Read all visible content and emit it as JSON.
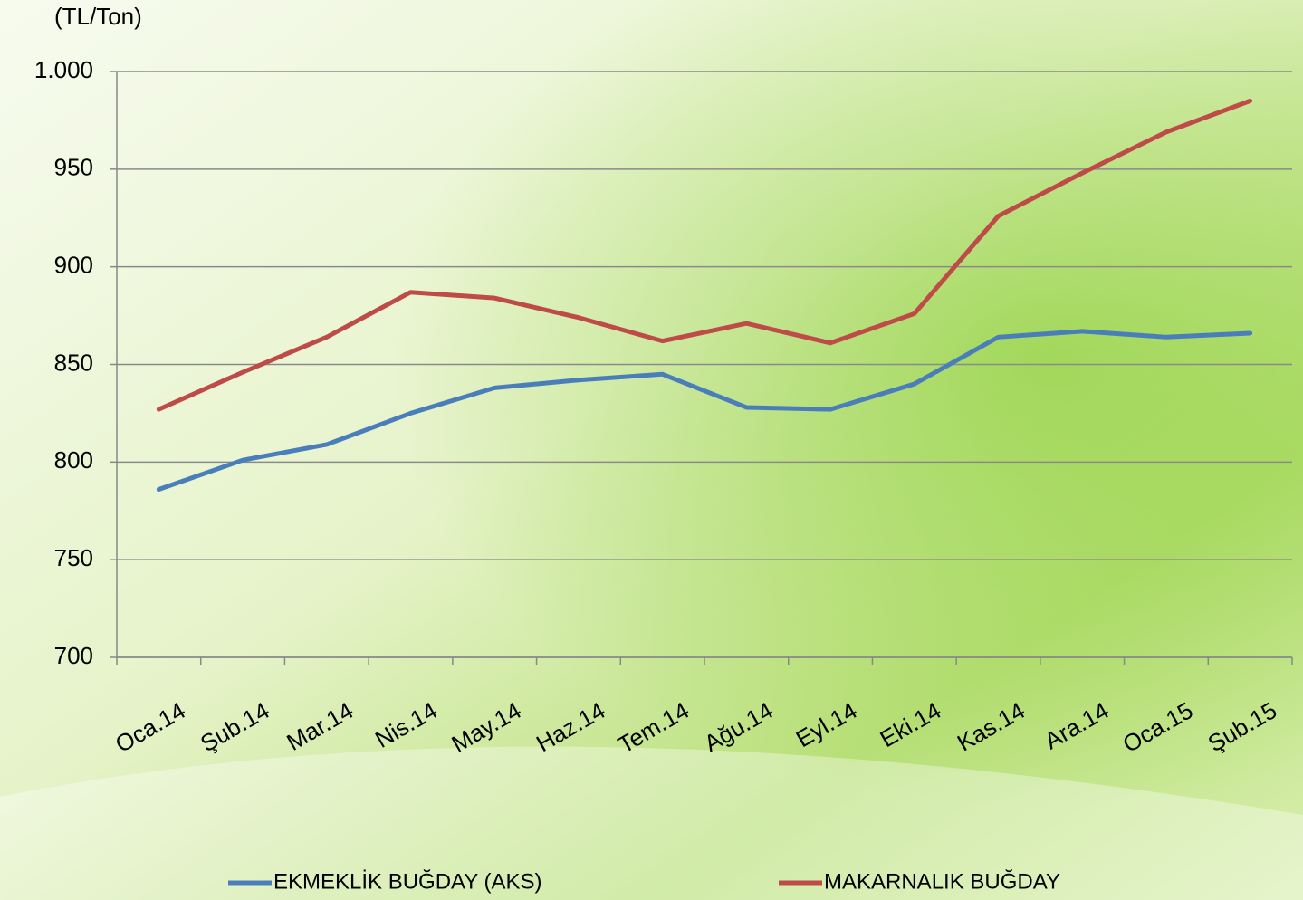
{
  "chart_data": {
    "type": "line",
    "ylabel": "(TL/Ton)",
    "categories": [
      "Oca.14",
      "Şub.14",
      "Mar.14",
      "Nis.14",
      "May.14",
      "Haz.14",
      "Tem.14",
      "Ağu.14",
      "Eyl.14",
      "Eki.14",
      "Kas.14",
      "Ara.14",
      "Oca.15",
      "Şub.15"
    ],
    "series": [
      {
        "name": "EKMEKLİK BUĞDAY (AKS)",
        "color": "#4a7ebb",
        "values": [
          786,
          801,
          809,
          825,
          838,
          842,
          845,
          828,
          827,
          840,
          864,
          867,
          864,
          866
        ]
      },
      {
        "name": "MAKARNALIK BUĞDAY",
        "color": "#be4b48",
        "values": [
          827,
          846,
          864,
          887,
          884,
          874,
          862,
          871,
          861,
          876,
          926,
          948,
          969,
          985
        ]
      }
    ],
    "ylim": [
      700,
      1000
    ],
    "yticks": [
      700,
      750,
      800,
      850,
      900,
      950,
      {
        "value": 1000,
        "label": "1.000"
      }
    ],
    "grid": true,
    "legend": "bottom"
  }
}
